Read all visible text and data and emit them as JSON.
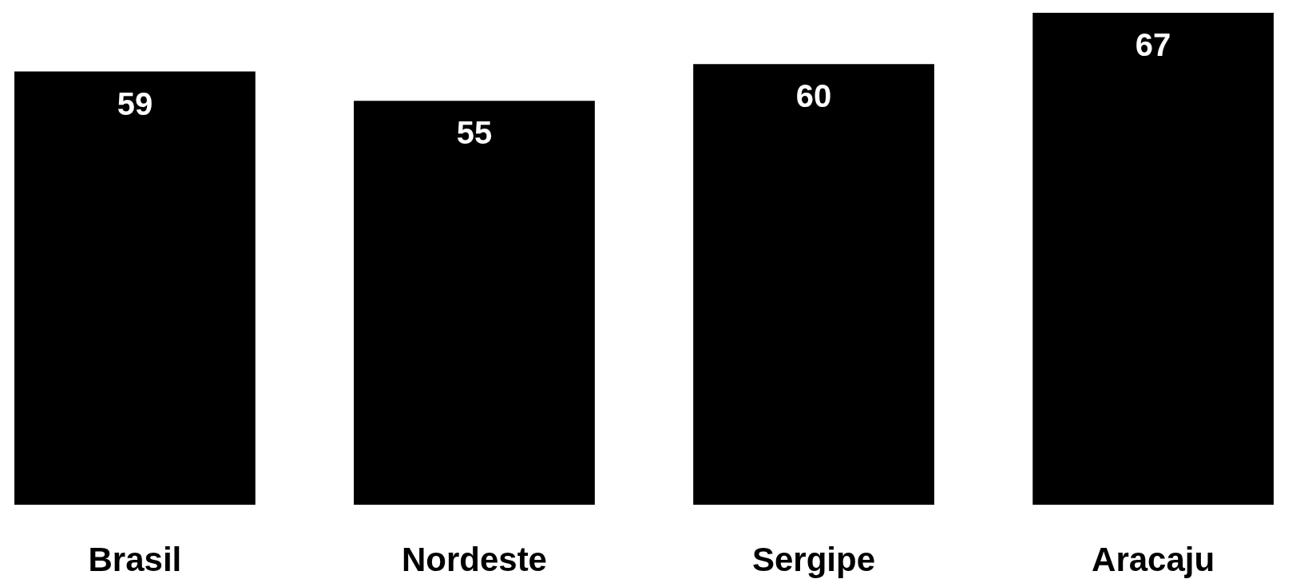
{
  "chart_data": {
    "type": "bar",
    "categories": [
      "Brasil",
      "Nordeste",
      "Sergipe",
      "Aracaju"
    ],
    "values": [
      59,
      55,
      60,
      67
    ],
    "color": "#000000",
    "data_labels": true
  }
}
